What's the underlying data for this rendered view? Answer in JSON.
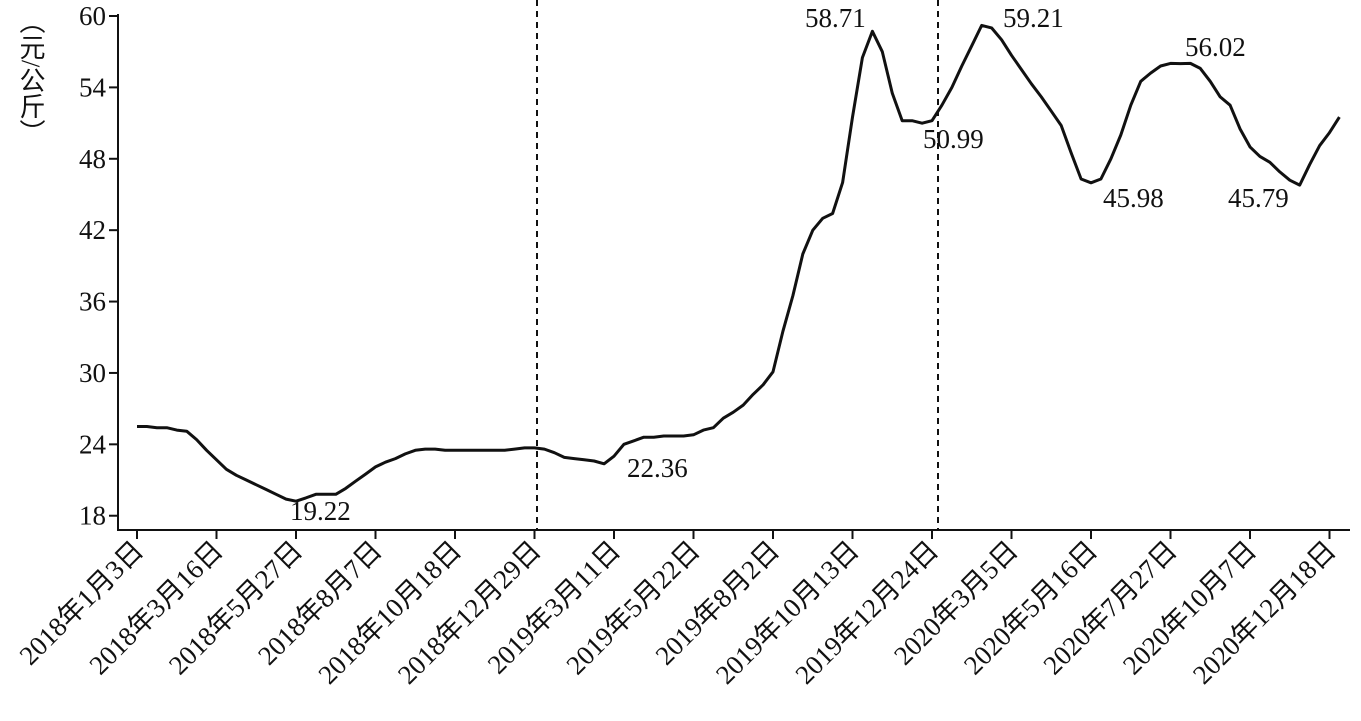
{
  "chart_data": {
    "type": "line",
    "ylabel": "（元/公斤）",
    "categories": [
      "2018年1月3日",
      null,
      null,
      null,
      null,
      null,
      null,
      null,
      "2018年3月16日",
      null,
      null,
      null,
      null,
      null,
      null,
      null,
      "2018年5月27日",
      null,
      null,
      null,
      null,
      null,
      null,
      null,
      "2018年8月7日",
      null,
      null,
      null,
      null,
      null,
      null,
      null,
      "2018年10月18日",
      null,
      null,
      null,
      null,
      null,
      null,
      null,
      "2018年12月29日",
      null,
      null,
      null,
      null,
      null,
      null,
      null,
      "2019年3月11日",
      null,
      null,
      null,
      null,
      null,
      null,
      null,
      "2019年5月22日",
      null,
      null,
      null,
      null,
      null,
      null,
      null,
      "2019年8月2日",
      null,
      null,
      null,
      null,
      null,
      null,
      null,
      "2019年10月13日",
      null,
      null,
      null,
      null,
      null,
      null,
      null,
      "2019年12月24日",
      null,
      null,
      null,
      null,
      null,
      null,
      null,
      "2020年3月5日",
      null,
      null,
      null,
      null,
      null,
      null,
      null,
      "2020年5月16日",
      null,
      null,
      null,
      null,
      null,
      null,
      null,
      "2020年7月27日",
      null,
      null,
      null,
      null,
      null,
      null,
      null,
      "2020年10月7日",
      null,
      null,
      null,
      null,
      null,
      null,
      null,
      "2020年12月18日",
      null
    ],
    "series": [
      {
        "color": "#111111",
        "values": [
          25.5,
          25.5,
          25.4,
          25.4,
          25.2,
          25.1,
          24.4,
          23.5,
          22.7,
          21.9,
          21.4,
          21.0,
          20.6,
          20.2,
          19.8,
          19.4,
          19.22,
          19.5,
          19.8,
          19.8,
          19.8,
          20.3,
          20.9,
          21.5,
          22.1,
          22.5,
          22.8,
          23.2,
          23.5,
          23.6,
          23.6,
          23.5,
          23.5,
          23.5,
          23.5,
          23.5,
          23.5,
          23.5,
          23.6,
          23.7,
          23.7,
          23.6,
          23.3,
          22.9,
          22.8,
          22.7,
          22.6,
          22.36,
          23.0,
          24.0,
          24.3,
          24.6,
          24.6,
          24.7,
          24.7,
          24.7,
          24.8,
          25.2,
          25.4,
          26.2,
          26.7,
          27.3,
          28.2,
          29.0,
          30.1,
          33.5,
          36.5,
          40.0,
          42.0,
          43.0,
          43.4,
          46.0,
          51.5,
          56.5,
          58.71,
          57.0,
          53.5,
          51.2,
          51.2,
          50.99,
          51.2,
          52.5,
          54.0,
          55.8,
          57.5,
          59.21,
          59.0,
          58.0,
          56.7,
          55.5,
          54.3,
          53.2,
          52.0,
          50.8,
          48.5,
          46.3,
          45.98,
          46.3,
          48.0,
          50.0,
          52.5,
          54.5,
          55.2,
          55.8,
          56.02,
          56.0,
          56.02,
          55.6,
          54.5,
          53.2,
          52.5,
          50.5,
          49.0,
          48.2,
          47.7,
          46.9,
          46.2,
          45.79,
          47.5,
          49.1,
          50.2,
          51.5
        ]
      }
    ],
    "annotations": [
      "19.22",
      "22.36",
      "58.71",
      "50.99",
      "59.21",
      "45.98",
      "56.02",
      "45.79"
    ],
    "ylim": [
      16.8,
      60
    ],
    "yticks": [
      18,
      24,
      30,
      36,
      42,
      48,
      54,
      60
    ]
  }
}
